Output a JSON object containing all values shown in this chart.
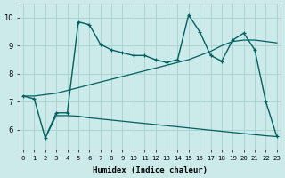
{
  "xlabel": "Humidex (Indice chaleur)",
  "bg_color": "#cceaea",
  "line_color": "#006060",
  "grid_color": "#aad4d4",
  "x_ticks": [
    0,
    1,
    2,
    3,
    4,
    5,
    6,
    7,
    8,
    9,
    10,
    11,
    12,
    13,
    14,
    15,
    16,
    17,
    18,
    19,
    20,
    21,
    22,
    23
  ],
  "y_ticks": [
    6,
    7,
    8,
    9,
    10
  ],
  "ylim": [
    5.3,
    10.5
  ],
  "xlim": [
    -0.3,
    23.3
  ],
  "line1_x": [
    0,
    1,
    2,
    3,
    4,
    5,
    6,
    7,
    8,
    9,
    10,
    11,
    12,
    13,
    14,
    15,
    16,
    17,
    18,
    19,
    20,
    21,
    22,
    23
  ],
  "line1_y": [
    7.2,
    7.1,
    5.7,
    6.6,
    6.6,
    9.85,
    9.75,
    9.05,
    8.85,
    8.75,
    8.65,
    8.65,
    8.5,
    8.4,
    8.5,
    10.1,
    9.5,
    8.65,
    8.45,
    9.2,
    9.45,
    8.85,
    7.0,
    5.75
  ],
  "line2_x": [
    2,
    3,
    4,
    5,
    6,
    7,
    8,
    9,
    10,
    11,
    12,
    13,
    14,
    15,
    16,
    17,
    18,
    19,
    20,
    21,
    22,
    23
  ],
  "line2_y": [
    5.7,
    6.5,
    6.5,
    6.48,
    6.42,
    6.38,
    6.34,
    6.3,
    6.26,
    6.22,
    6.18,
    6.14,
    6.1,
    6.06,
    6.02,
    5.98,
    5.94,
    5.9,
    5.86,
    5.82,
    5.78,
    5.75
  ],
  "line3_x": [
    0,
    1,
    2,
    3,
    4,
    5,
    6,
    7,
    8,
    9,
    10,
    11,
    12,
    13,
    14,
    15,
    16,
    17,
    18,
    19,
    20,
    21,
    22,
    23
  ],
  "line3_y": [
    7.2,
    7.2,
    7.25,
    7.3,
    7.4,
    7.5,
    7.6,
    7.7,
    7.8,
    7.9,
    8.0,
    8.1,
    8.2,
    8.3,
    8.4,
    8.5,
    8.65,
    8.8,
    9.0,
    9.15,
    9.2,
    9.2,
    9.15,
    9.1
  ]
}
